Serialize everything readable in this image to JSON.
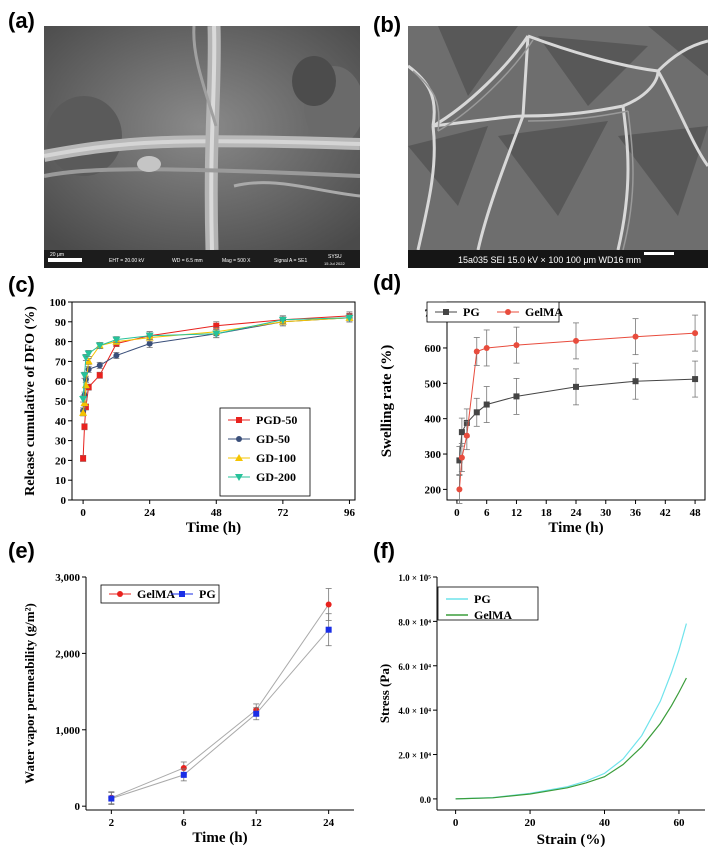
{
  "panels": {
    "a": {
      "label": "(a)",
      "scale": "20 μm",
      "eht": "EHT = 20.00 kV",
      "wd": "WD = 6.5  mm",
      "mag": "Mag =  500  X",
      "signal": "Signal A = SE1",
      "brand": "SYSU",
      "date": "15 Jul 2022"
    },
    "b": {
      "label": "(b)",
      "info": "15a035 SEI   15.0 kV   × 100  100 μm  WD16 mm"
    },
    "c": {
      "label": "(c)"
    },
    "d": {
      "label": "(d)"
    },
    "e": {
      "label": "(e)"
    },
    "f": {
      "label": "(f)"
    }
  },
  "colors": {
    "red": "#e8221e",
    "navy": "#3a4f7a",
    "yellow": "#f5c400",
    "teal": "#27c29a",
    "gray": "#454545",
    "coral": "#e84c3d",
    "blue": "#1a2ee6",
    "cyan": "#6fe3ec",
    "green": "#3b9d3b"
  },
  "chart_data": [
    {
      "id": "c",
      "type": "line",
      "title": "",
      "xlabel": "Time (h)",
      "ylabel": "Release cumulative of DFO (%)",
      "xlim": [
        -4,
        98
      ],
      "ylim": [
        0,
        100
      ],
      "xticks": [
        0,
        24,
        48,
        72,
        96
      ],
      "yticks": [
        0,
        10,
        20,
        30,
        40,
        50,
        60,
        70,
        80,
        90,
        100
      ],
      "legend_position": "bottom-right",
      "series": [
        {
          "name": "PGD-50",
          "marker": "square",
          "color": "#e8221e",
          "x": [
            0,
            0.5,
            1,
            2,
            6,
            12,
            24,
            48,
            72,
            96
          ],
          "y": [
            21,
            37,
            47,
            57,
            63,
            79,
            83,
            88,
            91,
            93
          ]
        },
        {
          "name": "GD-50",
          "marker": "circle",
          "color": "#3a4f7a",
          "x": [
            0,
            0.5,
            1,
            2,
            6,
            12,
            24,
            48,
            72,
            96
          ],
          "y": [
            45,
            53,
            61,
            66,
            68,
            73,
            79,
            84,
            90,
            92
          ]
        },
        {
          "name": "GD-100",
          "marker": "triangle-up",
          "color": "#f5c400",
          "x": [
            0,
            0.5,
            1,
            2,
            6,
            12,
            24,
            48,
            72,
            96
          ],
          "y": [
            44,
            49,
            58,
            70,
            78,
            80,
            82,
            85,
            90,
            92
          ]
        },
        {
          "name": "GD-200",
          "marker": "triangle-down",
          "color": "#27c29a",
          "x": [
            0,
            0.5,
            1,
            2,
            6,
            12,
            24,
            48,
            72,
            96
          ],
          "y": [
            51,
            63,
            72,
            74,
            78,
            81,
            83,
            84,
            91,
            92
          ]
        }
      ]
    },
    {
      "id": "d",
      "type": "line",
      "title": "",
      "xlabel": "Time (h)",
      "ylabel": "Swelling rate (%)",
      "xlim": [
        -2,
        50
      ],
      "ylim": [
        170,
        730
      ],
      "xticks": [
        0,
        6,
        12,
        18,
        24,
        30,
        36,
        42,
        48
      ],
      "yticks": [
        200,
        300,
        400,
        500,
        600,
        700
      ],
      "legend_position": "top-left",
      "series": [
        {
          "name": "PG",
          "marker": "square",
          "color": "#454545",
          "x": [
            0.5,
            1,
            2,
            4,
            6,
            12,
            24,
            36,
            48
          ],
          "y": [
            282,
            362,
            388,
            418,
            440,
            463,
            490,
            506,
            512
          ]
        },
        {
          "name": "GelMA",
          "marker": "circle",
          "color": "#e84c3d",
          "x": [
            0.5,
            1,
            2,
            4,
            6,
            12,
            24,
            36,
            48
          ],
          "y": [
            200,
            290,
            352,
            590,
            600,
            608,
            620,
            632,
            642
          ]
        }
      ]
    },
    {
      "id": "e",
      "type": "line",
      "title": "",
      "xlabel": "Time (h)",
      "ylabel": "Water vapor permeability (g/m²)",
      "categories": [
        "2",
        "6",
        "12",
        "24"
      ],
      "ylim": [
        -50,
        3000
      ],
      "yticks": [
        0,
        1000,
        2000,
        3000
      ],
      "ytick_labels": [
        "0",
        "1,000",
        "2,000",
        "3,000"
      ],
      "legend_position": "top-left",
      "series": [
        {
          "name": "GelMA",
          "marker": "circle",
          "color": "#e8221e",
          "values": [
            110,
            500,
            1260,
            2640
          ]
        },
        {
          "name": "PG",
          "marker": "square",
          "color": "#1a2ee6",
          "values": [
            100,
            410,
            1210,
            2310
          ]
        }
      ]
    },
    {
      "id": "f",
      "type": "line",
      "title": "",
      "xlabel": "Strain (%)",
      "ylabel": "Stress (Pa)",
      "xlim": [
        -5,
        67
      ],
      "ylim": [
        -5000,
        100000
      ],
      "xticks": [
        0,
        20,
        40,
        60
      ],
      "yticks": [
        0,
        20000,
        40000,
        60000,
        80000,
        100000
      ],
      "ytick_labels": [
        "0.0",
        "2.0 × 10⁴",
        "4.0 × 10⁴",
        "6.0 × 10⁴",
        "8.0 × 10⁴",
        "1.0 × 10⁵"
      ],
      "legend_position": "top-left",
      "series": [
        {
          "name": "PG",
          "color": "#6fe3ec",
          "x": [
            0,
            10,
            20,
            30,
            35,
            40,
            45,
            50,
            55,
            58,
            60,
            62
          ],
          "y": [
            0,
            600,
            2500,
            5500,
            8000,
            11500,
            18000,
            28500,
            44000,
            57000,
            67000,
            79000
          ]
        },
        {
          "name": "GelMA",
          "color": "#3b9d3b",
          "x": [
            0,
            10,
            20,
            30,
            35,
            40,
            45,
            50,
            55,
            58,
            60,
            62
          ],
          "y": [
            0,
            500,
            2200,
            5000,
            7200,
            10000,
            15500,
            23500,
            34000,
            42000,
            48000,
            54500
          ]
        }
      ]
    }
  ]
}
